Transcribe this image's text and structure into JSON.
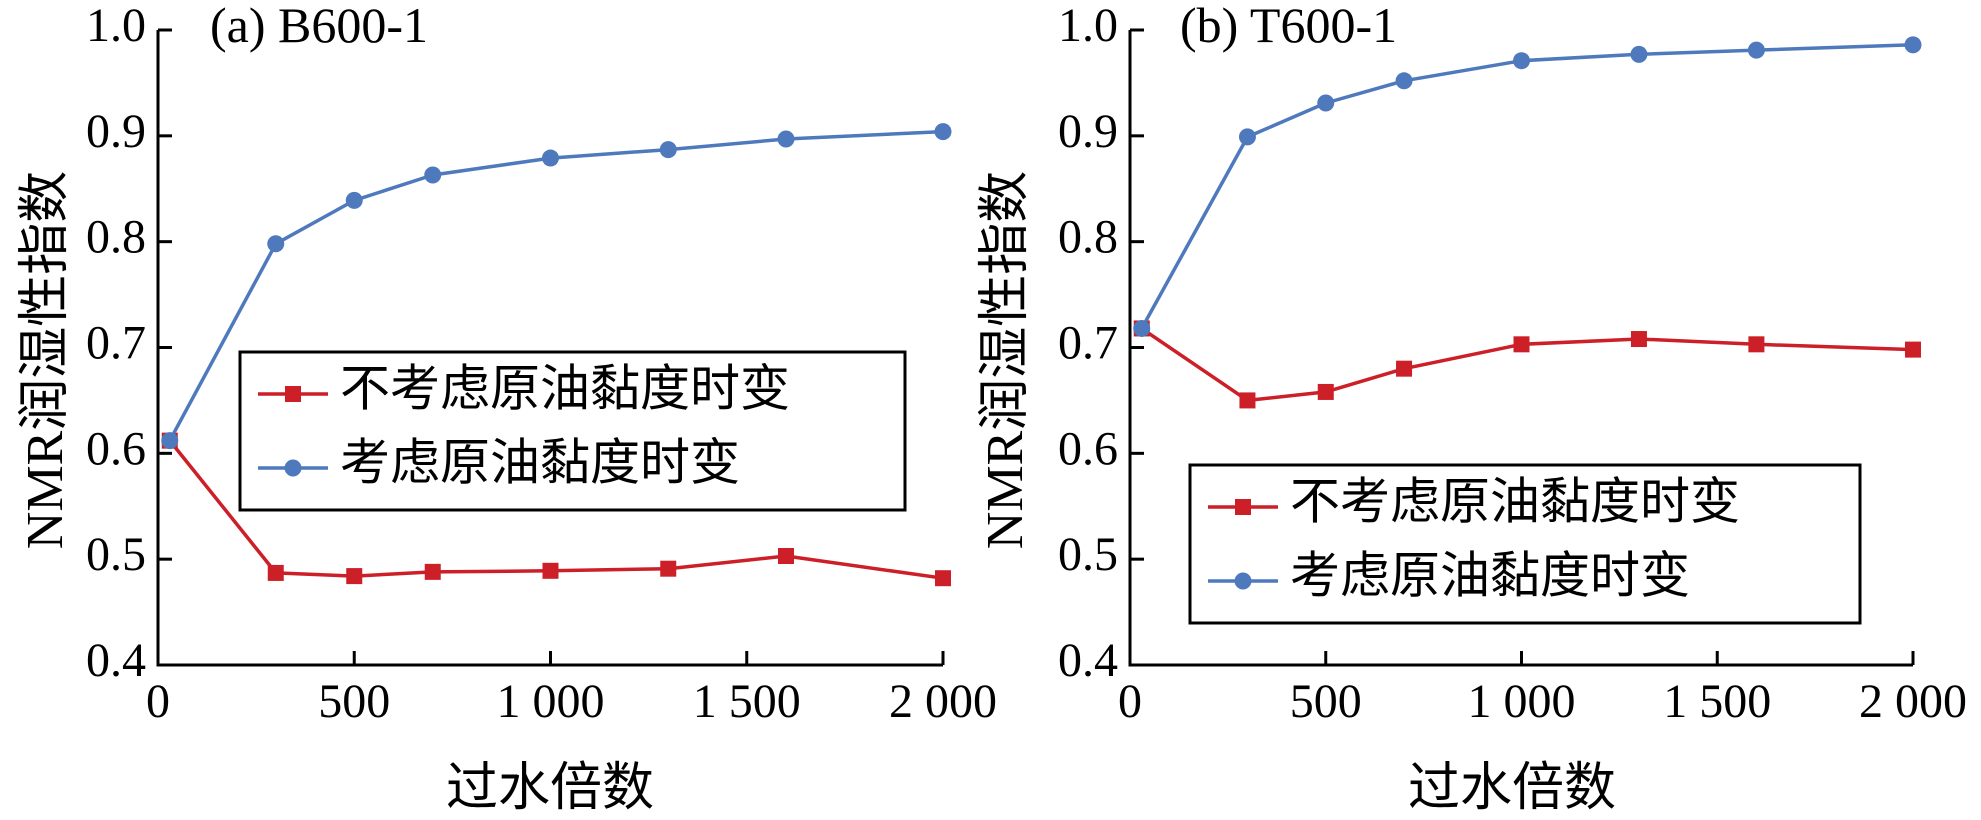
{
  "chart_data": [
    {
      "type": "line",
      "title": "(a) B600-1",
      "xlabel": "过水倍数",
      "ylabel": "NMR润湿性指数",
      "xlim": [
        0,
        2000
      ],
      "ylim": [
        0.4,
        1.0
      ],
      "xticks": [
        0,
        500,
        1000,
        1500,
        2000
      ],
      "xtick_labels": [
        "0",
        "500",
        "1 000",
        "1 500",
        "2 000"
      ],
      "yticks": [
        0.4,
        0.5,
        0.6,
        0.7,
        0.8,
        0.9,
        1.0
      ],
      "ytick_labels": [
        "0.4",
        "0.5",
        "0.6",
        "0.7",
        "0.8",
        "0.9",
        "1.0"
      ],
      "grid": false,
      "legend_position": "center-right",
      "series": [
        {
          "name": "不考虑原油黏度时变",
          "color": "#cc1f27",
          "marker": "square",
          "x": [
            30,
            300,
            500,
            700,
            1000,
            1300,
            1600,
            2000
          ],
          "y": [
            0.612,
            0.487,
            0.484,
            0.488,
            0.489,
            0.491,
            0.503,
            0.482
          ]
        },
        {
          "name": "考虑原油黏度时变",
          "color": "#4f79bd",
          "marker": "circle",
          "x": [
            30,
            300,
            500,
            700,
            1000,
            1300,
            1600,
            2000
          ],
          "y": [
            0.612,
            0.798,
            0.839,
            0.863,
            0.879,
            0.887,
            0.897,
            0.904
          ]
        }
      ]
    },
    {
      "type": "line",
      "title": "(b) T600-1",
      "xlabel": "过水倍数",
      "ylabel": "NMR润湿性指数",
      "xlim": [
        0,
        2000
      ],
      "ylim": [
        0.4,
        1.0
      ],
      "xticks": [
        0,
        500,
        1000,
        1500,
        2000
      ],
      "xtick_labels": [
        "0",
        "500",
        "1 000",
        "1 500",
        "2 000"
      ],
      "yticks": [
        0.4,
        0.5,
        0.6,
        0.7,
        0.8,
        0.9,
        1.0
      ],
      "ytick_labels": [
        "0.4",
        "0.5",
        "0.6",
        "0.7",
        "0.8",
        "0.9",
        "1.0"
      ],
      "grid": false,
      "legend_position": "lower-right",
      "series": [
        {
          "name": "不考虑原油黏度时变",
          "color": "#cc1f27",
          "marker": "square",
          "x": [
            30,
            300,
            500,
            700,
            1000,
            1300,
            1600,
            2000
          ],
          "y": [
            0.718,
            0.65,
            0.658,
            0.68,
            0.703,
            0.708,
            0.703,
            0.698
          ]
        },
        {
          "name": "考虑原油黏度时变",
          "color": "#4f79bd",
          "marker": "circle",
          "x": [
            30,
            300,
            500,
            700,
            1000,
            1300,
            1600,
            2000
          ],
          "y": [
            0.718,
            0.899,
            0.931,
            0.952,
            0.971,
            0.977,
            0.981,
            0.986
          ]
        }
      ]
    }
  ]
}
